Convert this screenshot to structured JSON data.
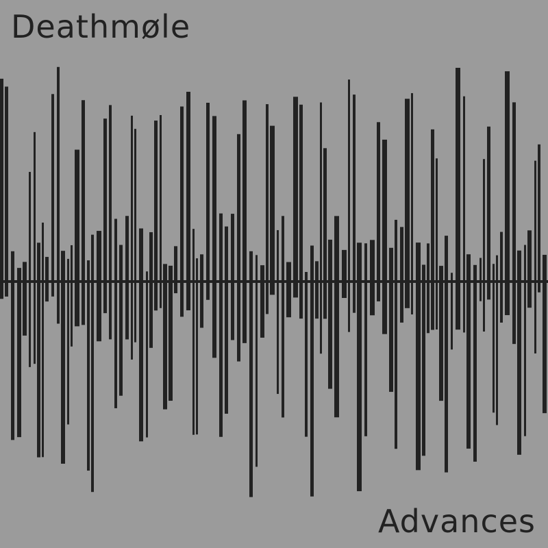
{
  "cover": {
    "artist": "Deathmøle",
    "album": "Advances",
    "background_color": "#9b9b9b",
    "ink_color": "#222222",
    "artwork": "waveform"
  }
}
